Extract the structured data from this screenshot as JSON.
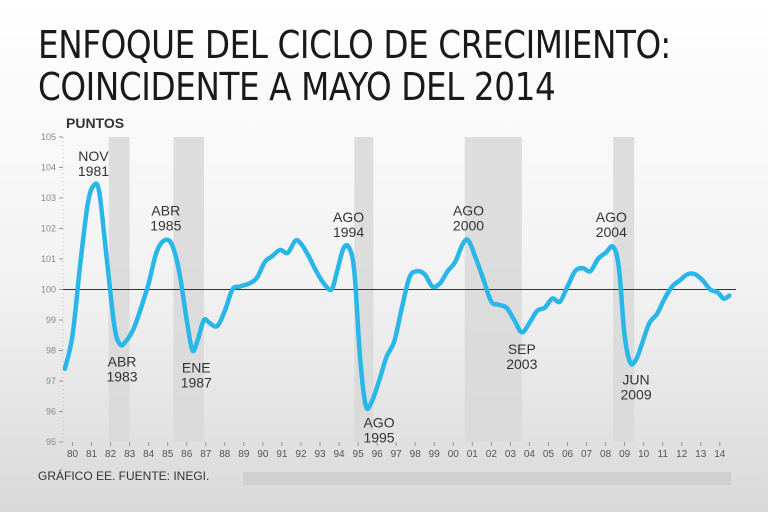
{
  "title_lines": [
    "ENFOQUE DEL CICLO DE CRECIMIENTO:",
    "COINCIDENTE A MAYO DEL 2014"
  ],
  "footer": "GRÁFICO EE. FUENTE: INEGI.",
  "colors": {
    "line": "#29b6e8",
    "band": "#d8d8d8",
    "baseline": "#333333",
    "text": "#333333"
  },
  "chart_data": {
    "type": "line",
    "ylabel": "PUNTOS",
    "ylim": [
      95,
      105
    ],
    "yticks": [
      95,
      96,
      97,
      98,
      99,
      100,
      101,
      102,
      103,
      104,
      105
    ],
    "xlim": [
      1979.5,
      2014.85
    ],
    "xticks": [
      {
        "year": 1980,
        "label": "80"
      },
      {
        "year": 1981,
        "label": "81"
      },
      {
        "year": 1982,
        "label": "82"
      },
      {
        "year": 1983,
        "label": "83"
      },
      {
        "year": 1984,
        "label": "84"
      },
      {
        "year": 1985,
        "label": "85"
      },
      {
        "year": 1986,
        "label": "86"
      },
      {
        "year": 1987,
        "label": "87"
      },
      {
        "year": 1988,
        "label": "88"
      },
      {
        "year": 1989,
        "label": "89"
      },
      {
        "year": 1990,
        "label": "90"
      },
      {
        "year": 1991,
        "label": "91"
      },
      {
        "year": 1992,
        "label": "92"
      },
      {
        "year": 1993,
        "label": "93"
      },
      {
        "year": 1994,
        "label": "94"
      },
      {
        "year": 1995,
        "label": "95"
      },
      {
        "year": 1996,
        "label": "96"
      },
      {
        "year": 1997,
        "label": "97"
      },
      {
        "year": 1998,
        "label": "98"
      },
      {
        "year": 1999,
        "label": "99"
      },
      {
        "year": 2000,
        "label": "00"
      },
      {
        "year": 2001,
        "label": "01"
      },
      {
        "year": 2002,
        "label": "02"
      },
      {
        "year": 2003,
        "label": "03"
      },
      {
        "year": 2004,
        "label": "04"
      },
      {
        "year": 2005,
        "label": "05"
      },
      {
        "year": 2006,
        "label": "06"
      },
      {
        "year": 2007,
        "label": "07"
      },
      {
        "year": 2008,
        "label": "08"
      },
      {
        "year": 2009,
        "label": "09"
      },
      {
        "year": 2010,
        "label": "10"
      },
      {
        "year": 2011,
        "label": "11"
      },
      {
        "year": 2012,
        "label": "12"
      },
      {
        "year": 2013,
        "label": "13"
      },
      {
        "year": 2014,
        "label": "14"
      }
    ],
    "reference_line": 100,
    "recession_bands": [
      {
        "start": 1981.9,
        "end": 1983.0
      },
      {
        "start": 1985.3,
        "end": 1986.9
      },
      {
        "start": 1994.8,
        "end": 1995.8
      },
      {
        "start": 2000.6,
        "end": 2003.6
      },
      {
        "start": 2008.4,
        "end": 2009.5
      }
    ],
    "series": [
      {
        "name": "Coincidente",
        "points": [
          [
            1979.6,
            97.4
          ],
          [
            1980.0,
            98.5
          ],
          [
            1980.4,
            100.8
          ],
          [
            1980.8,
            102.8
          ],
          [
            1981.1,
            103.4
          ],
          [
            1981.4,
            103.2
          ],
          [
            1981.8,
            101.0
          ],
          [
            1982.2,
            98.8
          ],
          [
            1982.5,
            98.2
          ],
          [
            1982.8,
            98.3
          ],
          [
            1983.2,
            98.7
          ],
          [
            1983.6,
            99.4
          ],
          [
            1984.0,
            100.2
          ],
          [
            1984.4,
            101.2
          ],
          [
            1984.8,
            101.6
          ],
          [
            1985.2,
            101.5
          ],
          [
            1985.6,
            100.6
          ],
          [
            1986.0,
            99.0
          ],
          [
            1986.3,
            98.0
          ],
          [
            1986.6,
            98.4
          ],
          [
            1986.9,
            99.0
          ],
          [
            1987.2,
            98.9
          ],
          [
            1987.6,
            98.8
          ],
          [
            1988.0,
            99.3
          ],
          [
            1988.4,
            100.0
          ],
          [
            1988.8,
            100.1
          ],
          [
            1989.3,
            100.2
          ],
          [
            1989.7,
            100.4
          ],
          [
            1990.1,
            100.9
          ],
          [
            1990.5,
            101.1
          ],
          [
            1990.9,
            101.3
          ],
          [
            1991.3,
            101.2
          ],
          [
            1991.7,
            101.6
          ],
          [
            1992.0,
            101.5
          ],
          [
            1992.4,
            101.1
          ],
          [
            1992.8,
            100.6
          ],
          [
            1993.2,
            100.2
          ],
          [
            1993.6,
            100.0
          ],
          [
            1993.9,
            100.6
          ],
          [
            1994.2,
            101.3
          ],
          [
            1994.5,
            101.4
          ],
          [
            1994.8,
            100.6
          ],
          [
            1995.1,
            97.8
          ],
          [
            1995.4,
            96.2
          ],
          [
            1995.7,
            96.3
          ],
          [
            1996.1,
            97.0
          ],
          [
            1996.5,
            97.8
          ],
          [
            1996.9,
            98.3
          ],
          [
            1997.3,
            99.4
          ],
          [
            1997.7,
            100.4
          ],
          [
            1998.1,
            100.6
          ],
          [
            1998.5,
            100.5
          ],
          [
            1998.9,
            100.1
          ],
          [
            1999.3,
            100.2
          ],
          [
            1999.7,
            100.6
          ],
          [
            2000.1,
            100.9
          ],
          [
            2000.5,
            101.5
          ],
          [
            2000.8,
            101.6
          ],
          [
            2001.2,
            101.0
          ],
          [
            2001.6,
            100.3
          ],
          [
            2002.0,
            99.6
          ],
          [
            2002.4,
            99.5
          ],
          [
            2002.8,
            99.4
          ],
          [
            2003.2,
            99.0
          ],
          [
            2003.6,
            98.6
          ],
          [
            2004.0,
            98.9
          ],
          [
            2004.4,
            99.3
          ],
          [
            2004.8,
            99.4
          ],
          [
            2005.2,
            99.7
          ],
          [
            2005.6,
            99.6
          ],
          [
            2006.0,
            100.1
          ],
          [
            2006.4,
            100.6
          ],
          [
            2006.8,
            100.7
          ],
          [
            2007.2,
            100.6
          ],
          [
            2007.6,
            101.0
          ],
          [
            2008.0,
            101.2
          ],
          [
            2008.4,
            101.4
          ],
          [
            2008.7,
            100.7
          ],
          [
            2009.0,
            98.5
          ],
          [
            2009.3,
            97.6
          ],
          [
            2009.6,
            97.7
          ],
          [
            2009.9,
            98.2
          ],
          [
            2010.3,
            98.9
          ],
          [
            2010.7,
            99.2
          ],
          [
            2011.1,
            99.7
          ],
          [
            2011.5,
            100.1
          ],
          [
            2011.9,
            100.3
          ],
          [
            2012.3,
            100.5
          ],
          [
            2012.7,
            100.5
          ],
          [
            2013.1,
            100.3
          ],
          [
            2013.5,
            100.0
          ],
          [
            2013.9,
            99.9
          ],
          [
            2014.2,
            99.7
          ],
          [
            2014.5,
            99.8
          ]
        ]
      }
    ],
    "annotations": [
      {
        "id": "nov-1981",
        "lines": [
          "NOV",
          "1981"
        ],
        "year": 1981.1,
        "value": 103.4,
        "position": "above"
      },
      {
        "id": "abr-1983",
        "lines": [
          "ABR",
          "1983"
        ],
        "year": 1982.6,
        "value": 98.2,
        "position": "below"
      },
      {
        "id": "abr-1985",
        "lines": [
          "ABR",
          "1985"
        ],
        "year": 1984.9,
        "value": 101.6,
        "position": "above"
      },
      {
        "id": "ene-1987",
        "lines": [
          "ENE",
          "1987"
        ],
        "year": 1986.5,
        "value": 98.0,
        "position": "below"
      },
      {
        "id": "ago-1994",
        "lines": [
          "AGO",
          "1994"
        ],
        "year": 1994.5,
        "value": 101.4,
        "position": "above"
      },
      {
        "id": "ago-1995",
        "lines": [
          "AGO",
          "1995"
        ],
        "year": 1996.1,
        "value": 96.2,
        "position": "below"
      },
      {
        "id": "ago-2000",
        "lines": [
          "AGO",
          "2000"
        ],
        "year": 2000.8,
        "value": 101.6,
        "position": "above"
      },
      {
        "id": "sep-2003",
        "lines": [
          "SEP",
          "2003"
        ],
        "year": 2003.6,
        "value": 98.6,
        "position": "below"
      },
      {
        "id": "ago-2004",
        "lines": [
          "AGO",
          "2004"
        ],
        "year": 2008.3,
        "value": 101.4,
        "position": "above"
      },
      {
        "id": "jun-2009",
        "lines": [
          "JUN",
          "2009"
        ],
        "year": 2009.6,
        "value": 97.6,
        "position": "below"
      }
    ]
  }
}
